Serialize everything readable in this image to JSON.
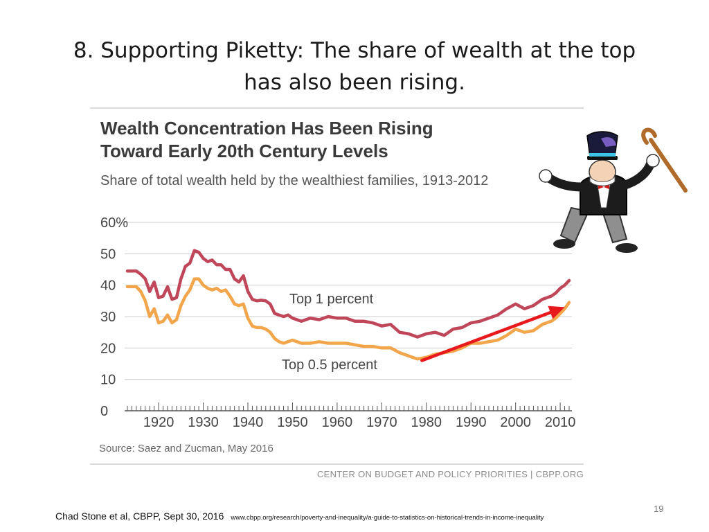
{
  "slide": {
    "title_line1": "8. Supporting Piketty:  The share of wealth at the top",
    "title_line2": "has also been rising.",
    "page_number": "19",
    "citation": "Chad Stone et al, CBPP, Sept 30, 2016",
    "url": "www.cbpp.org/research/poverty-and-inequality/a-guide-to-statistics-on-historical-trends-in-income-inequality"
  },
  "chart_data": {
    "type": "line",
    "title_line1": "Wealth Concentration Has Been Rising",
    "title_line2": "Toward Early 20th Century Levels",
    "subtitle": "Share of total wealth held by the wealthiest families, 1913-2012",
    "xlim": [
      1913,
      2012
    ],
    "ylim": [
      0,
      60
    ],
    "y_ticks": [
      0,
      10,
      20,
      30,
      40,
      50,
      60
    ],
    "y_tick_labels": [
      "0",
      "10",
      "20",
      "30",
      "40",
      "50",
      "60%"
    ],
    "x_ticks": [
      1920,
      1930,
      1940,
      1950,
      1960,
      1970,
      1980,
      1990,
      2000,
      2010
    ],
    "x_tick_labels": [
      "1920",
      "1930",
      "1940",
      "1950",
      "1960",
      "1970",
      "1980",
      "1990",
      "2000",
      "2010"
    ],
    "grid": true,
    "source": "Source: Saez and Zucman, May 2016",
    "credit": "CENTER ON BUDGET AND POLICY PRIORITIES | CBPP.ORG",
    "series": [
      {
        "name": "Top 1 percent",
        "color": "#c0475a",
        "x": [
          1913,
          1915,
          1916,
          1917,
          1918,
          1919,
          1920,
          1921,
          1922,
          1923,
          1924,
          1925,
          1926,
          1927,
          1928,
          1929,
          1930,
          1931,
          1932,
          1933,
          1934,
          1935,
          1936,
          1937,
          1938,
          1939,
          1940,
          1941,
          1942,
          1943,
          1944,
          1945,
          1946,
          1947,
          1948,
          1949,
          1950,
          1952,
          1954,
          1956,
          1958,
          1960,
          1962,
          1964,
          1966,
          1968,
          1970,
          1972,
          1974,
          1976,
          1978,
          1980,
          1982,
          1984,
          1986,
          1988,
          1990,
          1992,
          1994,
          1996,
          1998,
          2000,
          2002,
          2004,
          2006,
          2008,
          2009,
          2010,
          2011,
          2012
        ],
        "values": [
          44.5,
          44.5,
          43.5,
          42,
          38,
          41,
          36,
          36.5,
          39.5,
          35.5,
          36,
          42,
          46,
          47,
          51,
          50.5,
          48.5,
          47.5,
          48,
          46.5,
          46.5,
          45,
          45,
          42,
          41,
          43,
          38,
          35.5,
          35,
          35.2,
          35,
          34,
          31,
          30.5,
          30,
          30.5,
          29.5,
          28.5,
          29.5,
          29,
          30,
          29.5,
          29.5,
          28.5,
          28.5,
          28,
          27,
          27.5,
          25,
          24.5,
          23.5,
          24.5,
          25,
          24,
          26,
          26.5,
          28,
          28.5,
          29.5,
          30.5,
          32.5,
          34,
          32.5,
          33.5,
          35.5,
          36.5,
          37.5,
          39,
          40,
          41.5
        ]
      },
      {
        "name": "Top 0.5 percent",
        "color": "#f2a54a",
        "x": [
          1913,
          1915,
          1916,
          1917,
          1918,
          1919,
          1920,
          1921,
          1922,
          1923,
          1924,
          1925,
          1926,
          1927,
          1928,
          1929,
          1930,
          1931,
          1932,
          1933,
          1934,
          1935,
          1936,
          1937,
          1938,
          1939,
          1940,
          1941,
          1942,
          1943,
          1944,
          1945,
          1946,
          1947,
          1948,
          1949,
          1950,
          1952,
          1954,
          1956,
          1958,
          1960,
          1962,
          1964,
          1966,
          1968,
          1970,
          1972,
          1974,
          1976,
          1978,
          1980,
          1982,
          1984,
          1986,
          1988,
          1990,
          1992,
          1994,
          1996,
          1998,
          2000,
          2002,
          2004,
          2006,
          2008,
          2009,
          2010,
          2011,
          2012
        ],
        "values": [
          39.5,
          39.5,
          38,
          35,
          30,
          32.5,
          28,
          28.5,
          30.5,
          28,
          29,
          33.5,
          36.5,
          38.5,
          42,
          42,
          40,
          39,
          38.5,
          39,
          38,
          38.5,
          36.5,
          34,
          33.5,
          34,
          29.5,
          27,
          26.5,
          26.5,
          26,
          25,
          23,
          22,
          21.5,
          22,
          22.5,
          21.5,
          21.5,
          22,
          21.5,
          21.5,
          21.5,
          21,
          20.5,
          20.5,
          20,
          20,
          18.5,
          17.5,
          16.5,
          17,
          18,
          18.5,
          19,
          20,
          21.5,
          21.5,
          22,
          22.5,
          24,
          26,
          25,
          25.5,
          27.5,
          28.5,
          29.5,
          31,
          32.5,
          34.5
        ]
      }
    ]
  },
  "annotation": {
    "arrow_color": "#e8191c",
    "arrow_from": {
      "year": 1979,
      "value": 16
    },
    "arrow_to": {
      "year": 2011,
      "value": 33
    },
    "mascot_icon": "top-hat-mascot-icon"
  }
}
